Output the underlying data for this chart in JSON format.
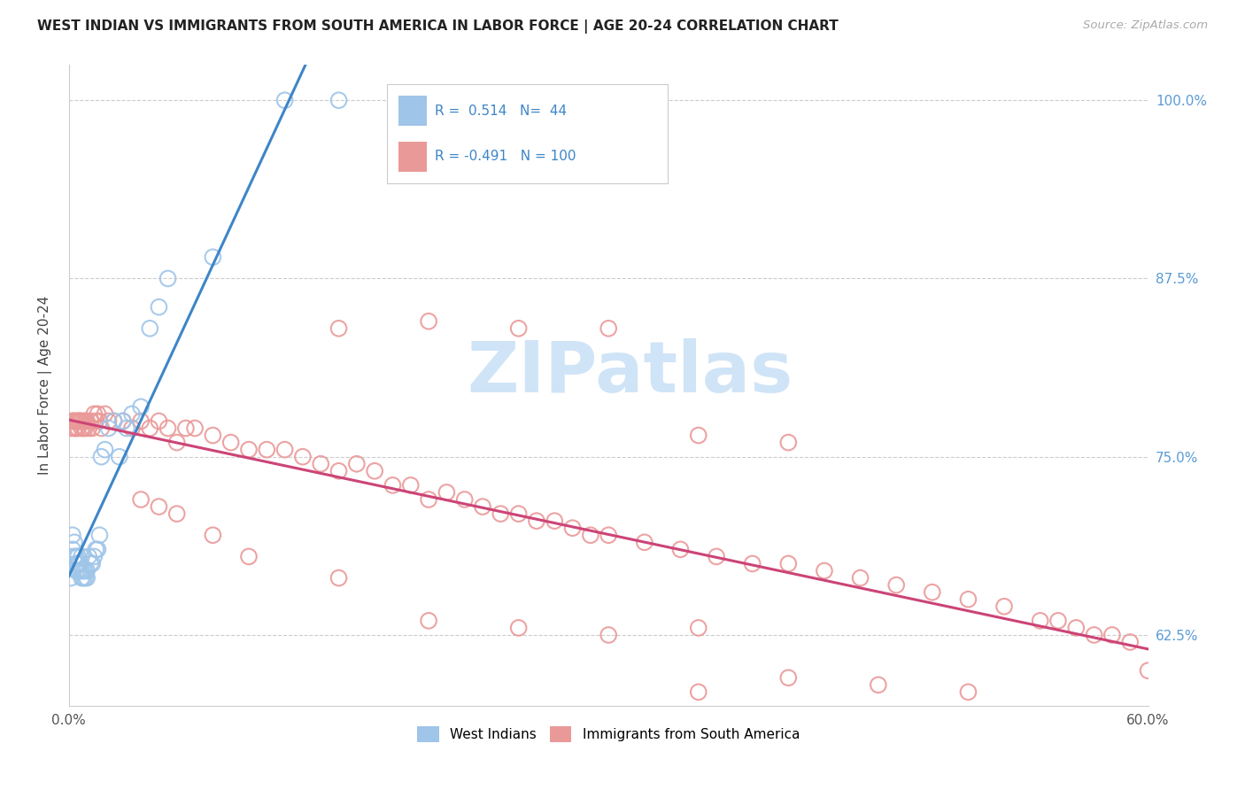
{
  "title": "WEST INDIAN VS IMMIGRANTS FROM SOUTH AMERICA IN LABOR FORCE | AGE 20-24 CORRELATION CHART",
  "source": "Source: ZipAtlas.com",
  "ylabel": "In Labor Force | Age 20-24",
  "xmin": 0.0,
  "xmax": 0.6,
  "ymin": 0.575,
  "ymax": 1.025,
  "yticks": [
    0.625,
    0.75,
    0.875,
    1.0
  ],
  "ytick_labels": [
    "62.5%",
    "75.0%",
    "87.5%",
    "100.0%"
  ],
  "r_blue": 0.514,
  "n_blue": 44,
  "r_pink": -0.491,
  "n_pink": 100,
  "blue_color": "#9fc5e8",
  "pink_color": "#ea9999",
  "blue_line_color": "#3d85c8",
  "pink_line_color": "#cc4477",
  "watermark_text": "ZIPatlas",
  "watermark_color": "#d0e4f7",
  "legend_label_blue": "West Indians",
  "legend_label_pink": "Immigrants from South America",
  "blue_scatter_x": [
    0.001,
    0.002,
    0.002,
    0.003,
    0.003,
    0.004,
    0.004,
    0.004,
    0.005,
    0.005,
    0.005,
    0.006,
    0.006,
    0.007,
    0.007,
    0.007,
    0.008,
    0.008,
    0.009,
    0.009,
    0.01,
    0.01,
    0.011,
    0.012,
    0.013,
    0.014,
    0.015,
    0.016,
    0.017,
    0.018,
    0.02,
    0.022,
    0.025,
    0.028,
    0.03,
    0.032,
    0.035,
    0.04,
    0.045,
    0.05,
    0.055,
    0.08,
    0.12,
    0.15
  ],
  "blue_scatter_y": [
    0.665,
    0.685,
    0.695,
    0.68,
    0.69,
    0.67,
    0.675,
    0.68,
    0.67,
    0.675,
    0.68,
    0.67,
    0.675,
    0.665,
    0.67,
    0.68,
    0.665,
    0.67,
    0.665,
    0.67,
    0.665,
    0.67,
    0.68,
    0.675,
    0.675,
    0.68,
    0.685,
    0.685,
    0.695,
    0.75,
    0.755,
    0.77,
    0.775,
    0.75,
    0.775,
    0.77,
    0.78,
    0.785,
    0.84,
    0.855,
    0.875,
    0.89,
    1.0,
    1.0
  ],
  "pink_scatter_x": [
    0.001,
    0.002,
    0.002,
    0.003,
    0.003,
    0.004,
    0.004,
    0.005,
    0.005,
    0.005,
    0.006,
    0.006,
    0.007,
    0.007,
    0.008,
    0.008,
    0.009,
    0.009,
    0.01,
    0.011,
    0.012,
    0.013,
    0.014,
    0.015,
    0.016,
    0.017,
    0.018,
    0.02,
    0.022,
    0.025,
    0.03,
    0.035,
    0.04,
    0.045,
    0.05,
    0.055,
    0.06,
    0.065,
    0.07,
    0.08,
    0.09,
    0.1,
    0.11,
    0.12,
    0.13,
    0.14,
    0.15,
    0.16,
    0.17,
    0.18,
    0.19,
    0.2,
    0.21,
    0.22,
    0.23,
    0.24,
    0.25,
    0.26,
    0.27,
    0.28,
    0.29,
    0.3,
    0.32,
    0.34,
    0.36,
    0.38,
    0.4,
    0.42,
    0.44,
    0.46,
    0.48,
    0.5,
    0.52,
    0.54,
    0.55,
    0.56,
    0.57,
    0.58,
    0.59,
    0.6,
    0.15,
    0.2,
    0.25,
    0.3,
    0.35,
    0.4,
    0.35,
    0.3,
    0.25,
    0.2,
    0.15,
    0.1,
    0.08,
    0.06,
    0.05,
    0.04,
    0.35,
    0.4,
    0.45,
    0.5
  ],
  "pink_scatter_y": [
    0.77,
    0.775,
    0.775,
    0.77,
    0.775,
    0.77,
    0.775,
    0.775,
    0.775,
    0.77,
    0.775,
    0.775,
    0.77,
    0.775,
    0.775,
    0.77,
    0.77,
    0.775,
    0.775,
    0.77,
    0.775,
    0.77,
    0.78,
    0.775,
    0.78,
    0.775,
    0.77,
    0.78,
    0.775,
    0.775,
    0.775,
    0.77,
    0.775,
    0.77,
    0.775,
    0.77,
    0.76,
    0.77,
    0.77,
    0.765,
    0.76,
    0.755,
    0.755,
    0.755,
    0.75,
    0.745,
    0.74,
    0.745,
    0.74,
    0.73,
    0.73,
    0.72,
    0.725,
    0.72,
    0.715,
    0.71,
    0.71,
    0.705,
    0.705,
    0.7,
    0.695,
    0.695,
    0.69,
    0.685,
    0.68,
    0.675,
    0.675,
    0.67,
    0.665,
    0.66,
    0.655,
    0.65,
    0.645,
    0.635,
    0.635,
    0.63,
    0.625,
    0.625,
    0.62,
    0.6,
    0.84,
    0.845,
    0.84,
    0.84,
    0.765,
    0.76,
    0.63,
    0.625,
    0.63,
    0.635,
    0.665,
    0.68,
    0.695,
    0.71,
    0.715,
    0.72,
    0.585,
    0.595,
    0.59,
    0.585
  ]
}
